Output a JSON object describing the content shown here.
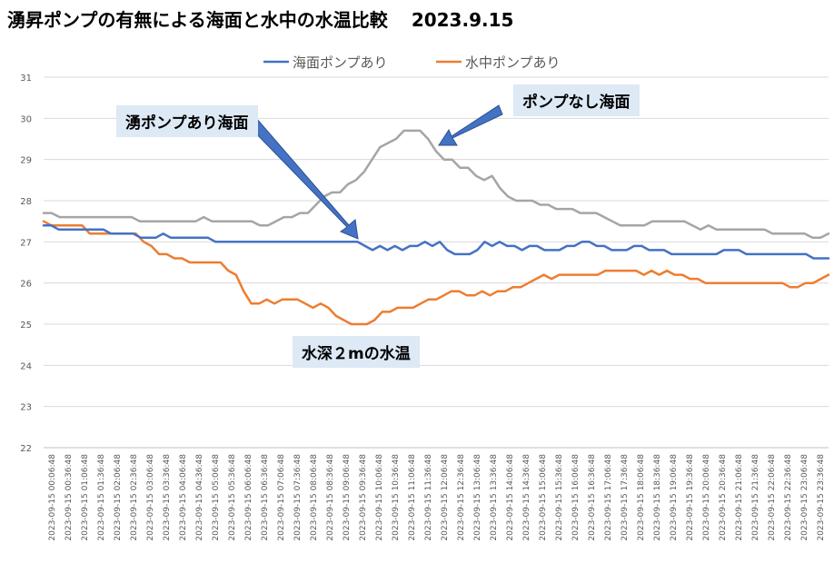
{
  "title": "湧昇ポンプの有無による海面と水中の水温比較",
  "date": "2023.9.15",
  "annotations": {
    "pump_surface": "湧ポンプあり海面",
    "no_pump_surface": "ポンプなし海面",
    "depth_2m": "水深２mの水温"
  },
  "chart_data": {
    "type": "line",
    "title": "湧昇ポンプの有無による海面と水中の水温比較",
    "legend_position": "top-center",
    "grid": true,
    "ylim": [
      22,
      31
    ],
    "yticks": [
      22,
      23,
      24,
      25,
      26,
      27,
      28,
      29,
      30,
      31
    ],
    "xlabels": [
      "2023-09-15 00:06:48",
      "2023-09-15 00:36:48",
      "2023-09-15 01:06:48",
      "2023-09-15 01:36:48",
      "2023-09-15 02:06:48",
      "2023-09-15 02:36:48",
      "2023-09-15 03:06:48",
      "2023-09-15 03:36:48",
      "2023-09-15 04:06:48",
      "2023-09-15 04:36:48",
      "2023-09-15 05:06:48",
      "2023-09-15 05:36:48",
      "2023-09-15 06:06:48",
      "2023-09-15 06:36:48",
      "2023-09-15 07:06:48",
      "2023-09-15 07:36:48",
      "2023-09-15 08:06:48",
      "2023-09-15 08:36:48",
      "2023-09-15 09:06:48",
      "2023-09-15 09:36:48",
      "2023-09-15 10:06:48",
      "2023-09-15 10:36:48",
      "2023-09-15 11:06:48",
      "2023-09-15 11:36:48",
      "2023-09-15 12:06:48",
      "2023-09-15 12:36:48",
      "2023-09-15 13:06:48",
      "2023-09-15 13:36:48",
      "2023-09-15 14:06:48",
      "2023-09-15 14:36:48",
      "2023-09-15 15:06:48",
      "2023-09-15 15:36:48",
      "2023-09-15 16:06:48",
      "2023-09-15 16:36:48",
      "2023-09-15 17:06:48",
      "2023-09-15 17:36:48",
      "2023-09-15 18:06:48",
      "2023-09-15 18:36:48",
      "2023-09-15 19:06:48",
      "2023-09-15 19:36:48",
      "2023-09-15 20:06:48",
      "2023-09-15 20:36:48",
      "2023-09-15 21:06:48",
      "2023-09-15 21:36:48",
      "2023-09-15 22:06:48",
      "2023-09-15 22:36:48",
      "2023-09-15 23:06:48",
      "2023-09-15 23:36:48"
    ],
    "series": [
      {
        "name": "海面ポンプあり",
        "color": "#4472c4",
        "legend": true,
        "values": [
          27.4,
          27.4,
          27.3,
          27.3,
          27.3,
          27.3,
          27.3,
          27.3,
          27.3,
          27.2,
          27.2,
          27.2,
          27.2,
          27.1,
          27.1,
          27.1,
          27.2,
          27.1,
          27.1,
          27.1,
          27.1,
          27.1,
          27.1,
          27.0,
          27.0,
          27.0,
          27.0,
          27.0,
          27.0,
          27.0,
          27.0,
          27.0,
          27.0,
          27.0,
          27.0,
          27.0,
          27.0,
          27.0,
          27.0,
          27.0,
          27.0,
          27.0,
          27.0,
          26.9,
          26.8,
          26.9,
          26.8,
          26.9,
          26.8,
          26.9,
          26.9,
          27.0,
          26.9,
          27.0,
          26.8,
          26.7,
          26.7,
          26.7,
          26.8,
          27.0,
          26.9,
          27.0,
          26.9,
          26.9,
          26.8,
          26.9,
          26.9,
          26.8,
          26.8,
          26.8,
          26.9,
          26.9,
          27.0,
          27.0,
          26.9,
          26.9,
          26.8,
          26.8,
          26.8,
          26.9,
          26.9,
          26.8,
          26.8,
          26.8,
          26.7,
          26.7,
          26.7,
          26.7,
          26.7,
          26.7,
          26.7,
          26.8,
          26.8,
          26.8,
          26.7,
          26.7,
          26.7,
          26.7,
          26.7,
          26.7,
          26.7,
          26.7,
          26.7,
          26.6,
          26.6,
          26.6
        ]
      },
      {
        "name": "水中ポンプあり",
        "color": "#ed7d31",
        "legend": true,
        "values": [
          27.5,
          27.4,
          27.4,
          27.4,
          27.4,
          27.4,
          27.2,
          27.2,
          27.2,
          27.2,
          27.2,
          27.2,
          27.2,
          27.0,
          26.9,
          26.7,
          26.7,
          26.6,
          26.6,
          26.5,
          26.5,
          26.5,
          26.5,
          26.5,
          26.3,
          26.2,
          25.8,
          25.5,
          25.5,
          25.6,
          25.5,
          25.6,
          25.6,
          25.6,
          25.5,
          25.4,
          25.5,
          25.4,
          25.2,
          25.1,
          25.0,
          25.0,
          25.0,
          25.1,
          25.3,
          25.3,
          25.4,
          25.4,
          25.4,
          25.5,
          25.6,
          25.6,
          25.7,
          25.8,
          25.8,
          25.7,
          25.7,
          25.8,
          25.7,
          25.8,
          25.8,
          25.9,
          25.9,
          26.0,
          26.1,
          26.2,
          26.1,
          26.2,
          26.2,
          26.2,
          26.2,
          26.2,
          26.2,
          26.3,
          26.3,
          26.3,
          26.3,
          26.3,
          26.2,
          26.3,
          26.2,
          26.3,
          26.2,
          26.2,
          26.1,
          26.1,
          26.0,
          26.0,
          26.0,
          26.0,
          26.0,
          26.0,
          26.0,
          26.0,
          26.0,
          26.0,
          26.0,
          25.9,
          25.9,
          26.0,
          26.0,
          26.1,
          26.2
        ]
      },
      {
        "name": "ポンプなし海面",
        "color": "#a5a5a5",
        "legend": false,
        "values": [
          27.7,
          27.7,
          27.6,
          27.6,
          27.6,
          27.6,
          27.6,
          27.6,
          27.6,
          27.6,
          27.6,
          27.6,
          27.5,
          27.5,
          27.5,
          27.5,
          27.5,
          27.5,
          27.5,
          27.5,
          27.6,
          27.5,
          27.5,
          27.5,
          27.5,
          27.5,
          27.5,
          27.4,
          27.4,
          27.5,
          27.6,
          27.6,
          27.7,
          27.7,
          27.9,
          28.1,
          28.2,
          28.2,
          28.4,
          28.5,
          28.7,
          29.0,
          29.3,
          29.4,
          29.5,
          29.7,
          29.7,
          29.7,
          29.5,
          29.2,
          29.0,
          29.0,
          28.8,
          28.8,
          28.6,
          28.5,
          28.6,
          28.3,
          28.1,
          28.0,
          28.0,
          28.0,
          27.9,
          27.9,
          27.8,
          27.8,
          27.8,
          27.7,
          27.7,
          27.7,
          27.6,
          27.5,
          27.4,
          27.4,
          27.4,
          27.4,
          27.5,
          27.5,
          27.5,
          27.5,
          27.5,
          27.4,
          27.3,
          27.4,
          27.3,
          27.3,
          27.3,
          27.3,
          27.3,
          27.3,
          27.3,
          27.2,
          27.2,
          27.2,
          27.2,
          27.2,
          27.1,
          27.1,
          27.2
        ]
      }
    ]
  }
}
